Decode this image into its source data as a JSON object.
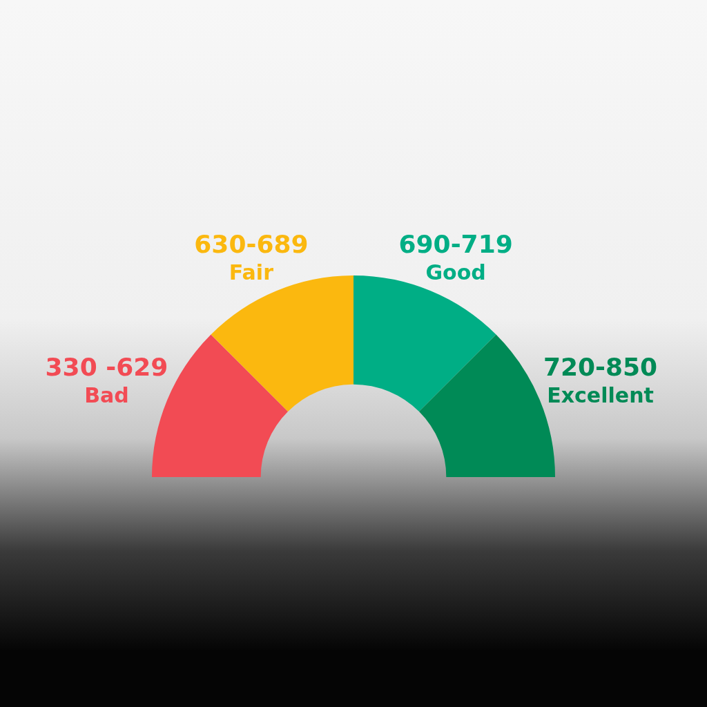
{
  "chart_data": {
    "type": "donut",
    "categories": [
      "330 -629\nBad",
      "630-689\nFair",
      "690-719\nGood",
      "720-850\nExcellent"
    ],
    "values": [
      25,
      25,
      25,
      25
    ],
    "colors": [
      "#f24b54",
      "#fbb80f",
      "#00ae85",
      "#008a56"
    ],
    "legend": false
  }
}
